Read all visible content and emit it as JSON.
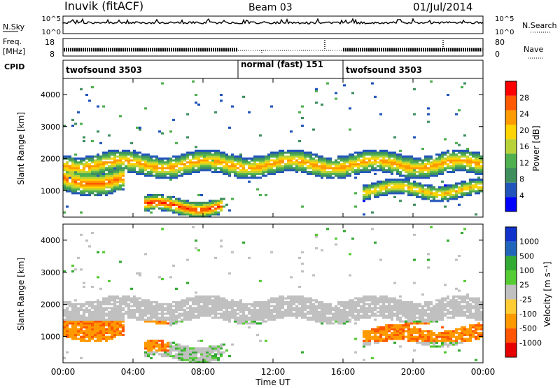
{
  "header": {
    "station": "Inuvik (fitACF)",
    "beam": "Beam 03",
    "date": "01/Jul/2014"
  },
  "noise_panel": {
    "left_label": "N.Sky",
    "left_ticks": [
      "10^5",
      "10^0"
    ],
    "right_label": "N.Search",
    "right_ticks": [
      "10^5",
      "10^0"
    ]
  },
  "freq_panel": {
    "left_label_1": "Freq.",
    "left_label_2": "[MHz]",
    "left_ticks": [
      "18",
      "8"
    ],
    "right_label": "Nave",
    "right_ticks": [
      "80",
      "0"
    ]
  },
  "cpid": {
    "label": "CPID",
    "segments": [
      {
        "name": "twofsound 3503",
        "start_h": 0,
        "end_h": 10
      },
      {
        "name": "normal (fast) 151",
        "start_h": 10,
        "end_h": 16
      },
      {
        "name": "twofsound 3503",
        "start_h": 16,
        "end_h": 24
      }
    ]
  },
  "colors": {
    "power": [
      "#0000ff",
      "#2255bb",
      "#3f8f5f",
      "#4fb04f",
      "#b8d23a",
      "#ffd400",
      "#ff9a00",
      "#ff5a00",
      "#ff0000"
    ],
    "velocity": [
      "#e60000",
      "#ff5500",
      "#ff9900",
      "#ffcc33",
      "#c0c0c0",
      "#55cc33",
      "#33aa33",
      "#2266bb",
      "#1133cc"
    ]
  },
  "chart_data": [
    {
      "type": "heatmap",
      "name": "power",
      "ylabel": "Slant Range [km]",
      "xlabel": "Time UT",
      "x_range_h": [
        0,
        24
      ],
      "ylim": [
        180,
        4500
      ],
      "y_ticks": [
        "1000",
        "2000",
        "3000",
        "4000"
      ],
      "x_ticks": [
        "00:00",
        "04:00",
        "08:00",
        "12:00",
        "16:00",
        "20:00",
        "00:00"
      ],
      "colorbar": {
        "label": "Power [dB]",
        "ticks": [
          "28",
          "24",
          "20",
          "16",
          "12",
          "8",
          "4"
        ]
      },
      "echo_bands_km": [
        {
          "from_h": 0,
          "to_h": 24,
          "center_km": 1800,
          "width_km": 350,
          "peak_db": 24
        },
        {
          "from_h": 4.5,
          "to_h": 9,
          "center_km": 500,
          "width_km": 250,
          "peak_db": 30
        },
        {
          "from_h": 0,
          "to_h": 3.5,
          "center_km": 1300,
          "width_km": 400,
          "peak_db": 26
        },
        {
          "from_h": 17,
          "to_h": 24,
          "center_km": 1000,
          "width_km": 250,
          "peak_db": 22
        }
      ]
    },
    {
      "type": "heatmap",
      "name": "velocity",
      "ylabel": "Slant Range [km]",
      "xlabel": "Time UT",
      "x_range_h": [
        0,
        24
      ],
      "ylim": [
        180,
        4500
      ],
      "y_ticks": [
        "1000",
        "2000",
        "3000",
        "4000"
      ],
      "x_ticks": [
        "00:00",
        "04:00",
        "08:00",
        "12:00",
        "16:00",
        "20:00",
        "00:00"
      ],
      "colorbar": {
        "label": "Velocity [m s⁻¹]",
        "ticks": [
          "1000",
          "500",
          "100",
          "25",
          "-25",
          "-100",
          "-500",
          "-1000"
        ]
      },
      "ground_scatter_band_km": [
        1500,
        2400
      ],
      "flow_bands_km": [
        {
          "from_h": 0,
          "to_h": 6,
          "center_km": 1000,
          "width_km": 500,
          "velocity": -300
        },
        {
          "from_h": 17,
          "to_h": 24,
          "center_km": 1100,
          "width_km": 300,
          "velocity": -250
        }
      ]
    }
  ],
  "axis": {
    "xlabel": "Time UT",
    "x_ticks": [
      "00:00",
      "04:00",
      "08:00",
      "12:00",
      "16:00",
      "20:00",
      "00:00"
    ]
  }
}
